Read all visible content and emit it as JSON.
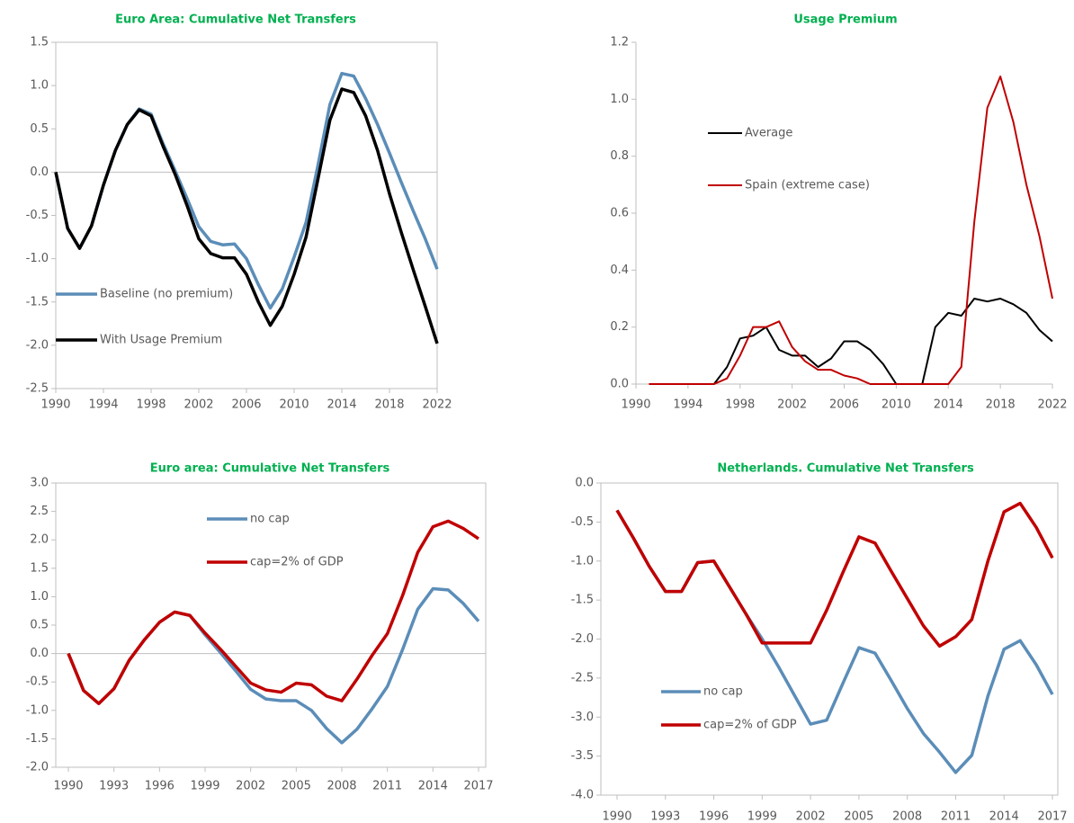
{
  "chart_data": [
    {
      "type": "line",
      "title": "Euro Area: Cumulative Net Transfers",
      "x": [
        1990,
        1991,
        1992,
        1993,
        1994,
        1995,
        1996,
        1997,
        1998,
        1999,
        2000,
        2001,
        2002,
        2003,
        2004,
        2005,
        2006,
        2007,
        2008,
        2009,
        2010,
        2011,
        2012,
        2013,
        2014,
        2015,
        2016,
        2017,
        2018,
        2019,
        2020,
        2021,
        2022
      ],
      "xlim": [
        1990,
        2022
      ],
      "xticks": [
        1990,
        1994,
        1998,
        2002,
        2006,
        2010,
        2014,
        2018,
        2022
      ],
      "ylim": [
        -2.5,
        1.5
      ],
      "yticks": [
        -2.5,
        {
          "value": -2,
          "label": "-2.0"
        },
        -1.5,
        {
          "value": -1,
          "label": "-1.0"
        },
        -0.5,
        {
          "value": 0,
          "label": "0.0"
        },
        0.5,
        {
          "value": 1,
          "label": "1.0"
        },
        1.5
      ],
      "zero_line": true,
      "frame": true,
      "series": [
        {
          "name": "Baseline (no premium)",
          "color": "#5b8db8",
          "values": [
            0,
            -0.65,
            -0.88,
            -0.62,
            -0.15,
            0.25,
            0.55,
            0.73,
            0.67,
            0.33,
            0.02,
            -0.3,
            -0.63,
            -0.8,
            -0.84,
            -0.83,
            -1.0,
            -1.3,
            -1.57,
            -1.35,
            -0.98,
            -0.58,
            0.08,
            0.78,
            1.14,
            1.11,
            0.85,
            0.55,
            0.22,
            -0.12,
            -0.45,
            -0.77,
            -1.12
          ]
        },
        {
          "name": "With Usage Premium",
          "color": "#000000",
          "values": [
            0,
            -0.65,
            -0.88,
            -0.62,
            -0.15,
            0.25,
            0.55,
            0.72,
            0.65,
            0.3,
            -0.02,
            -0.38,
            -0.77,
            -0.94,
            -0.99,
            -0.99,
            -1.18,
            -1.5,
            -1.77,
            -1.55,
            -1.18,
            -0.75,
            -0.08,
            0.6,
            0.96,
            0.92,
            0.65,
            0.25,
            -0.25,
            -0.7,
            -1.13,
            -1.55,
            -1.98
          ]
        }
      ]
    },
    {
      "type": "line",
      "title": "Usage Premium",
      "x": [
        1991,
        1992,
        1993,
        1994,
        1995,
        1996,
        1997,
        1998,
        1999,
        2000,
        2001,
        2002,
        2003,
        2004,
        2005,
        2006,
        2007,
        2008,
        2009,
        2010,
        2011,
        2012,
        2013,
        2014,
        2015,
        2016,
        2017,
        2018,
        2019,
        2020,
        2021,
        2022
      ],
      "xlim": [
        1990,
        2022
      ],
      "xticks": [
        1990,
        1994,
        1998,
        2002,
        2006,
        2010,
        2014,
        2018,
        2022
      ],
      "ylim": [
        0,
        1.2
      ],
      "yticks": [
        {
          "value": 0,
          "label": "0.0"
        },
        0.2,
        0.4,
        0.6,
        0.8,
        {
          "value": 1,
          "label": "1.0"
        },
        1.2
      ],
      "zero_line": false,
      "frame": false,
      "series": [
        {
          "name": "Average",
          "color": "#000000",
          "values": [
            0,
            0,
            0,
            0,
            0,
            0,
            0.06,
            0.16,
            0.17,
            0.2,
            0.12,
            0.1,
            0.1,
            0.06,
            0.09,
            0.15,
            0.15,
            0.12,
            0.07,
            0,
            0,
            0,
            0.2,
            0.25,
            0.24,
            0.3,
            0.29,
            0.3,
            0.28,
            0.25,
            0.19,
            0.15
          ]
        },
        {
          "name": "Spain (extreme case)",
          "color": "#c00000",
          "values": [
            0,
            0,
            0,
            0,
            0,
            0,
            0.02,
            0.1,
            0.2,
            0.2,
            0.22,
            0.13,
            0.08,
            0.05,
            0.05,
            0.03,
            0.02,
            0,
            0,
            0,
            0,
            0,
            0,
            0,
            0.06,
            0.57,
            0.97,
            1.08,
            0.92,
            0.7,
            0.52,
            0.3
          ]
        }
      ]
    },
    {
      "type": "line",
      "title": "Euro area: Cumulative Net Transfers",
      "x": [
        1990,
        1991,
        1992,
        1993,
        1994,
        1995,
        1996,
        1997,
        1998,
        1999,
        2000,
        2001,
        2002,
        2003,
        2004,
        2005,
        2006,
        2007,
        2008,
        2009,
        2010,
        2011,
        2012,
        2013,
        2014,
        2015,
        2016,
        2017
      ],
      "xlim": [
        1990,
        2017
      ],
      "xticks": [
        1990,
        1993,
        1996,
        1999,
        2002,
        2005,
        2008,
        2011,
        2014,
        2017
      ],
      "ylim": [
        -2,
        3
      ],
      "yticks": [
        {
          "value": -2,
          "label": "-2.0"
        },
        -1.5,
        {
          "value": -1,
          "label": "-1.0"
        },
        -0.5,
        {
          "value": 0,
          "label": "0.0"
        },
        0.5,
        {
          "value": 1,
          "label": "1.0"
        },
        1.5,
        {
          "value": 2,
          "label": "2.0"
        },
        2.5,
        {
          "value": 3,
          "label": "3.0"
        }
      ],
      "zero_line": true,
      "frame": true,
      "series": [
        {
          "name": "no cap",
          "color": "#5b8db8",
          "values": [
            0,
            -0.65,
            -0.88,
            -0.62,
            -0.12,
            0.24,
            0.55,
            0.73,
            0.67,
            0.33,
            0.02,
            -0.3,
            -0.63,
            -0.8,
            -0.83,
            -0.83,
            -1.0,
            -1.32,
            -1.57,
            -1.33,
            -0.97,
            -0.58,
            0.07,
            0.78,
            1.14,
            1.12,
            0.88,
            0.57
          ]
        },
        {
          "name": "cap=2% of GDP",
          "color": "#c00000",
          "values": [
            0,
            -0.65,
            -0.88,
            -0.62,
            -0.12,
            0.24,
            0.55,
            0.73,
            0.67,
            0.36,
            0.08,
            -0.22,
            -0.52,
            -0.64,
            -0.68,
            -0.52,
            -0.55,
            -0.75,
            -0.83,
            -0.45,
            -0.03,
            0.35,
            1.02,
            1.78,
            2.23,
            2.33,
            2.2,
            2.02
          ]
        }
      ]
    },
    {
      "type": "line",
      "title": "Netherlands. Cumulative Net Transfers",
      "x": [
        1990,
        1991,
        1992,
        1993,
        1994,
        1995,
        1996,
        1997,
        1998,
        1999,
        2000,
        2001,
        2002,
        2003,
        2004,
        2005,
        2006,
        2007,
        2008,
        2009,
        2010,
        2011,
        2012,
        2013,
        2014,
        2015,
        2016,
        2017
      ],
      "xlim": [
        1990,
        2017
      ],
      "xticks": [
        1990,
        1993,
        1996,
        1999,
        2002,
        2005,
        2008,
        2011,
        2014,
        2017
      ],
      "ylim": [
        -4,
        0
      ],
      "yticks": [
        {
          "value": -4,
          "label": "-4.0"
        },
        -3.5,
        {
          "value": -3,
          "label": "-3.0"
        },
        -2.5,
        {
          "value": -2,
          "label": "-2.0"
        },
        -1.5,
        {
          "value": -1,
          "label": "-1.0"
        },
        -0.5,
        {
          "value": 0,
          "label": "0.0"
        }
      ],
      "zero_line": false,
      "frame": true,
      "series": [
        {
          "name": "no cap",
          "color": "#5b8db8",
          "values": [
            -0.35,
            -0.7,
            -1.07,
            -1.39,
            -1.39,
            -1.02,
            -1.0,
            -1.34,
            -1.68,
            -2.0,
            -2.35,
            -2.72,
            -3.09,
            -3.04,
            -2.57,
            -2.11,
            -2.18,
            -2.53,
            -2.89,
            -3.21,
            -3.45,
            -3.71,
            -3.49,
            -2.73,
            -2.13,
            -2.02,
            -2.33,
            -2.71
          ]
        },
        {
          "name": "cap=2% of GDP",
          "color": "#c00000",
          "values": [
            -0.35,
            -0.7,
            -1.07,
            -1.39,
            -1.39,
            -1.02,
            -1.0,
            -1.34,
            -1.68,
            -2.05,
            -2.05,
            -2.05,
            -2.05,
            -1.63,
            -1.15,
            -0.69,
            -0.77,
            -1.13,
            -1.48,
            -1.83,
            -2.09,
            -1.97,
            -1.75,
            -1.0,
            -0.37,
            -0.26,
            -0.57,
            -0.96
          ]
        }
      ]
    }
  ]
}
